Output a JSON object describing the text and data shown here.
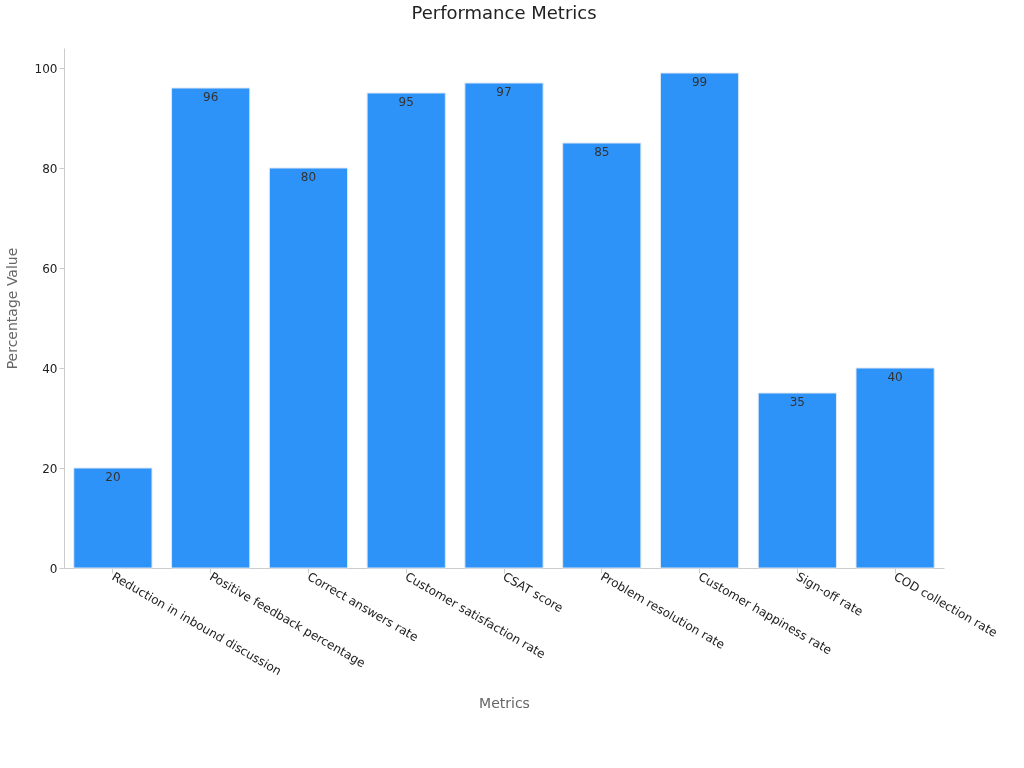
{
  "chart_data": {
    "type": "bar",
    "title": "Performance Metrics",
    "xlabel": "Metrics",
    "ylabel": "Percentage Value",
    "categories": [
      "Reduction in inbound discussion",
      "Positive feedback percentage",
      "Correct answers rate",
      "Customer satisfaction rate",
      "CSAT score",
      "Problem resolution rate",
      "Customer happiness rate",
      "Sign-off rate",
      "COD collection rate"
    ],
    "values": [
      20,
      96,
      80,
      95,
      97,
      85,
      99,
      35,
      40
    ],
    "color": "#2e93f8",
    "ylim": [
      0,
      104
    ],
    "yticks": [
      0,
      20,
      40,
      60,
      80,
      100
    ],
    "grid": false,
    "data_labels": true
  }
}
